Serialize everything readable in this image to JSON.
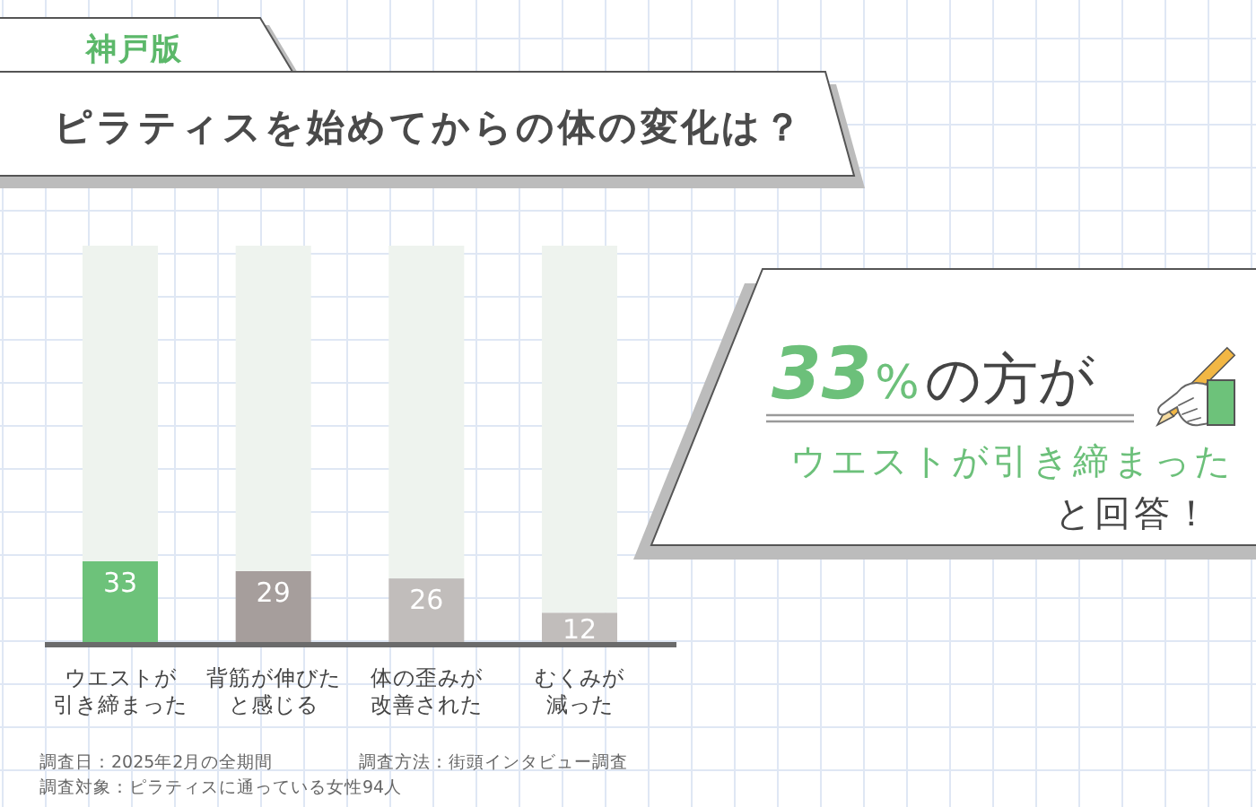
{
  "chart_data": {
    "type": "bar",
    "subtitle": "神戸版",
    "title": "ピラティスを始めてからの体の変化は？",
    "categories": [
      "ウエストが引き締まった",
      "背筋が伸びたと感じる",
      "体の歪みが改善された",
      "むくみが減った"
    ],
    "stacked": true,
    "series": [
      {
        "values": [
          33,
          29,
          26,
          12
        ],
        "colors": [
          "#6dc27a",
          "#a69e9c",
          "#c1bdbb",
          "#c1bdbb"
        ],
        "value_labels": [
          "33",
          "29",
          "26",
          "12"
        ]
      },
      {
        "values": [
          129,
          133,
          136,
          150
        ],
        "color": "#eef3ee"
      }
    ],
    "annotations": [
      "33%の方が",
      "ウエストが引き締まった",
      "と回答！",
      "調査日：2025年2月の全期間",
      "調査方法：街頭インタビュー調査",
      "調査対象：ピラティスに通っている女性94人"
    ]
  }
}
